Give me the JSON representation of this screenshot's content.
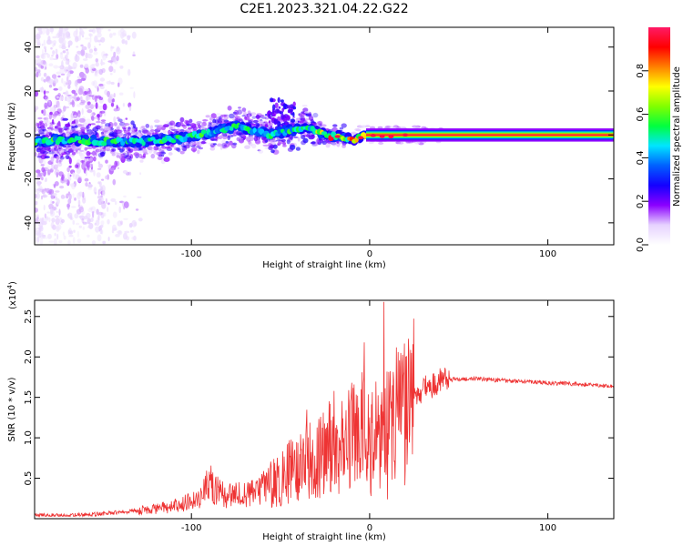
{
  "title": "C2E1.2023.321.04.22.G22",
  "chart_data": [
    {
      "type": "heatmap",
      "xlabel": "Height of straight line (km)",
      "ylabel": "Frequency (Hz)",
      "xlim": [
        -188,
        137
      ],
      "ylim": [
        -50,
        49
      ],
      "xticks": [
        -100,
        0,
        100
      ],
      "yticks": [
        -40,
        -20,
        0,
        20,
        40
      ],
      "xtick_labels": [
        "-100",
        "0",
        "100"
      ],
      "ytick_labels": [
        "-40",
        "-20",
        "0",
        "20",
        "40"
      ],
      "colorbar": {
        "label": "Normalized spectral amplitude",
        "range": [
          0,
          1
        ],
        "ticks": [
          0.0,
          0.2,
          0.4,
          0.6,
          0.8
        ],
        "tick_labels": [
          "0.0",
          "0.2",
          "0.4",
          "0.6",
          "0.8"
        ],
        "colors": [
          "#ffffff",
          "#e6d2ff",
          "#8b00ff",
          "#1400ff",
          "#0060ff",
          "#00e5ff",
          "#00ff40",
          "#80ff00",
          "#ffff00",
          "#ff8000",
          "#ff0000",
          "#ff1a66"
        ]
      },
      "ridge": {
        "x": [
          -188,
          -170,
          -150,
          -130,
          -110,
          -95,
          -85,
          -75,
          -65,
          -55,
          -45,
          -35,
          -25,
          -15,
          -8,
          0,
          10,
          20,
          40,
          60,
          80,
          100,
          137
        ],
        "frequency_hz": [
          -3,
          -2,
          -3,
          -3,
          -2,
          0,
          2,
          4,
          2,
          0,
          2,
          4,
          0,
          -1,
          -2,
          0,
          -1,
          0,
          0,
          0,
          0,
          0,
          0
        ]
      }
    },
    {
      "type": "line",
      "xlabel": "Height of straight line (km)",
      "ylabel": "SNR (10 * v/v)",
      "y_multiplier": "(x10",
      "y_multiplier_exp": "4",
      "y_multiplier_close": ")",
      "xlim": [
        -188,
        137
      ],
      "ylim": [
        0,
        27000
      ],
      "xticks": [
        -100,
        0,
        100
      ],
      "yticks": [
        5000,
        10000,
        15000,
        20000,
        25000
      ],
      "xtick_labels": [
        "-100",
        "0",
        "100"
      ],
      "ytick_labels": [
        "0.5",
        "1.0",
        "1.5",
        "2.0",
        "2.5"
      ],
      "series": [
        {
          "color": "#ee3333",
          "x": [
            -188,
            -170,
            -150,
            -130,
            -110,
            -95,
            -90,
            -80,
            -70,
            -60,
            -50,
            -40,
            -35,
            -30,
            -25,
            -20,
            -15,
            -10,
            -5,
            0,
            5,
            10,
            15,
            20,
            25,
            30,
            40,
            50,
            60,
            80,
            100,
            120,
            137
          ],
          "values": [
            400,
            400,
            600,
            1000,
            1500,
            2500,
            4500,
            2800,
            3000,
            3600,
            5000,
            6500,
            8000,
            7000,
            9000,
            8500,
            9000,
            10000,
            11000,
            9000,
            11000,
            12000,
            13000,
            13000,
            15000,
            16000,
            17000,
            17300,
            17300,
            17000,
            16800,
            16600,
            16300
          ],
          "spikes": [
            {
              "x": -90,
              "value": 5800
            },
            {
              "x": -20,
              "value": 15800
            },
            {
              "x": -3,
              "value": 21800
            },
            {
              "x": 8,
              "value": 26800
            },
            {
              "x": 10,
              "value": 2400
            }
          ]
        }
      ]
    }
  ]
}
